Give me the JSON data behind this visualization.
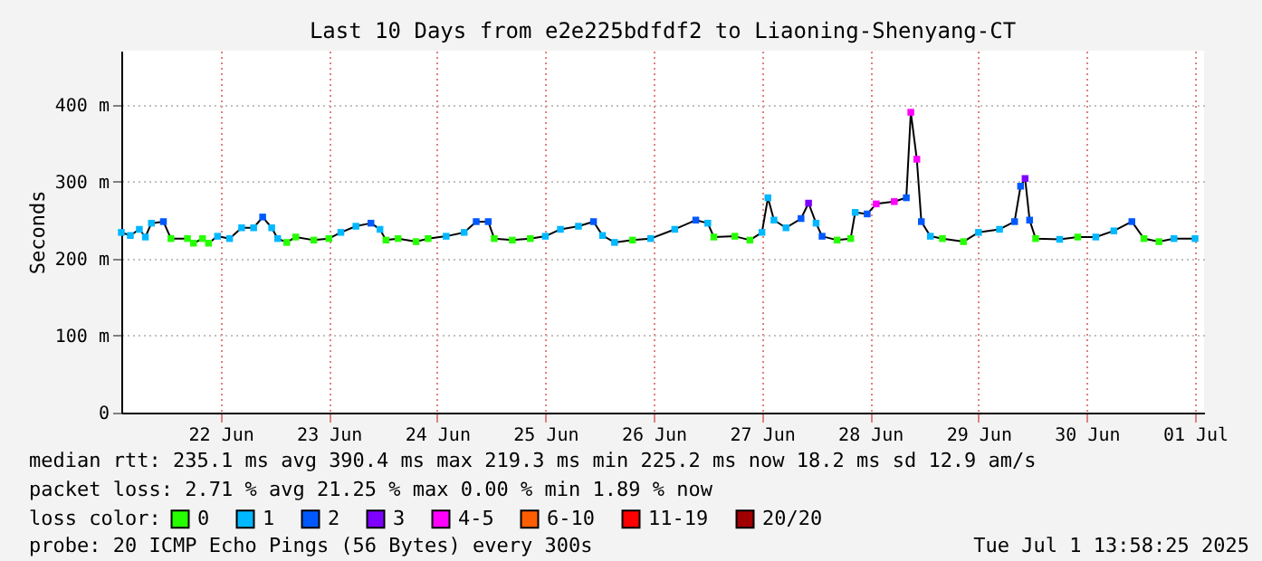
{
  "chart_data": {
    "type": "line",
    "title": "Last 10 Days from e2e225bdfdf2 to Liaoning-Shenyang-CT",
    "ylabel": "Seconds",
    "legend_title": "loss color:",
    "legend": "bottom",
    "grid": true,
    "xlim": [
      "2025-06-21T14:00",
      "2025-07-01T14:00"
    ],
    "xticks": [
      {
        "value": "2025-06-22T12:00",
        "label": "22 Jun"
      },
      {
        "value": "2025-06-23T12:00",
        "label": "23 Jun"
      },
      {
        "value": "2025-06-24T12:00",
        "label": "24 Jun"
      },
      {
        "value": "2025-06-25T12:00",
        "label": "25 Jun"
      },
      {
        "value": "2025-06-26T12:00",
        "label": "26 Jun"
      },
      {
        "value": "2025-06-27T12:00",
        "label": "27 Jun"
      },
      {
        "value": "2025-06-28T12:00",
        "label": "28 Jun"
      },
      {
        "value": "2025-06-29T12:00",
        "label": "29 Jun"
      },
      {
        "value": "2025-06-30T12:00",
        "label": "30 Jun"
      },
      {
        "value": "2025-07-01T12:00",
        "label": "01 Jul"
      }
    ],
    "ylim": [
      0,
      470
    ],
    "yticks": [
      0,
      {
        "value": 100,
        "label": "100 m"
      },
      {
        "value": 200,
        "label": "200 m"
      },
      {
        "value": 300,
        "label": "300 m"
      },
      {
        "value": 400,
        "label": "400 m"
      }
    ],
    "annotations": [
      "median rtt:  235.1 ms avg   390.4 ms max   219.3 ms min   225.2 ms now   18.2 ms sd   12.9    am/s",
      "packet loss: 2.71 % avg   21.25 % max   0.00 % min   1.89 % now",
      "probe:         20 ICMP Echo Pings (56 Bytes) every 300s",
      "Tue Jul  1 13:58:25 2025"
    ],
    "series": [
      {
        "color": "#000000",
        "x": [
          "2025-06-21T14:00",
          "2025-06-21T16:00",
          "2025-06-21T18:00",
          "2025-06-21T19:20",
          "2025-06-21T20:40",
          "2025-06-21T23:20",
          "2025-06-22T01:00",
          "2025-06-22T04:40",
          "2025-06-22T06:00",
          "2025-06-22T08:00",
          "2025-06-22T09:20",
          "2025-06-22T11:20",
          "2025-06-22T14:00",
          "2025-06-22T16:40",
          "2025-06-22T19:20",
          "2025-06-22T21:20",
          "2025-06-22T23:20",
          "2025-06-23T00:40",
          "2025-06-23T02:40",
          "2025-06-23T04:40",
          "2025-06-23T08:40",
          "2025-06-23T12:00",
          "2025-06-23T14:40",
          "2025-06-23T18:00",
          "2025-06-23T21:20",
          "2025-06-23T23:20",
          "2025-06-24T00:40",
          "2025-06-24T03:20",
          "2025-06-24T07:20",
          "2025-06-24T10:00",
          "2025-06-24T14:00",
          "2025-06-24T18:00",
          "2025-06-24T20:40",
          "2025-06-24T23:20",
          "2025-06-25T00:40",
          "2025-06-25T04:40",
          "2025-06-25T08:40",
          "2025-06-25T12:00",
          "2025-06-25T15:20",
          "2025-06-25T19:20",
          "2025-06-25T22:40",
          "2025-06-26T00:40",
          "2025-06-26T03:20",
          "2025-06-26T07:20",
          "2025-06-26T11:20",
          "2025-06-26T16:40",
          "2025-06-26T21:20",
          "2025-06-27T00:00",
          "2025-06-27T01:20",
          "2025-06-27T06:00",
          "2025-06-27T09:20",
          "2025-06-27T12:00",
          "2025-06-27T13:20",
          "2025-06-27T14:40",
          "2025-06-27T17:20",
          "2025-06-27T20:40",
          "2025-06-27T22:20",
          "2025-06-28T00:00",
          "2025-06-28T01:20",
          "2025-06-28T04:40",
          "2025-06-28T07:40",
          "2025-06-28T08:40",
          "2025-06-28T11:20",
          "2025-06-28T13:20",
          "2025-06-28T17:20",
          "2025-06-28T20:00",
          "2025-06-28T21:00",
          "2025-06-28T22:20",
          "2025-06-28T23:20",
          "2025-06-29T01:20",
          "2025-06-29T04:00",
          "2025-06-29T08:40",
          "2025-06-29T12:00",
          "2025-06-29T16:40",
          "2025-06-29T20:00",
          "2025-06-29T21:20",
          "2025-06-29T22:20",
          "2025-06-29T23:20",
          "2025-06-30T00:40",
          "2025-06-30T06:00",
          "2025-06-30T10:00",
          "2025-06-30T14:00",
          "2025-06-30T18:00",
          "2025-06-30T22:00",
          "2025-07-01T00:40",
          "2025-07-01T04:00",
          "2025-07-01T07:20",
          "2025-07-01T12:00"
        ],
        "values": [
          234,
          230,
          238,
          228,
          246,
          248,
          226,
          226,
          220,
          226,
          220,
          229,
          226,
          240,
          240,
          254,
          240,
          226,
          221,
          228,
          224,
          226,
          234,
          242,
          246,
          238,
          224,
          226,
          222,
          226,
          229,
          234,
          248,
          248,
          226,
          224,
          226,
          229,
          238,
          242,
          248,
          230,
          221,
          224,
          226,
          238,
          250,
          246,
          228,
          229,
          224,
          234,
          279,
          250,
          240,
          252,
          272,
          246,
          229,
          224,
          226,
          260,
          258,
          271,
          274,
          279,
          390,
          329,
          248,
          229,
          226,
          222,
          234,
          238,
          248,
          294,
          304,
          250,
          226,
          225,
          228,
          228,
          236,
          248,
          226,
          222,
          226,
          226
        ]
      },
      {
        "type": "scatter",
        "marker": "square",
        "name": "0",
        "color": "#26ff00",
        "x": [
          "2025-06-22T01:00",
          "2025-06-22T04:40",
          "2025-06-22T06:00",
          "2025-06-22T08:00",
          "2025-06-22T09:20",
          "2025-06-23T02:40",
          "2025-06-23T04:40",
          "2025-06-23T08:40",
          "2025-06-23T12:00",
          "2025-06-24T00:40",
          "2025-06-24T03:20",
          "2025-06-24T07:20",
          "2025-06-24T10:00",
          "2025-06-25T00:40",
          "2025-06-25T04:40",
          "2025-06-25T08:40",
          "2025-06-26T07:20",
          "2025-06-27T01:20",
          "2025-06-27T06:00",
          "2025-06-27T09:20",
          "2025-06-28T04:40",
          "2025-06-28T07:40",
          "2025-06-29T04:00",
          "2025-06-29T08:40",
          "2025-06-30T00:40",
          "2025-06-30T10:00",
          "2025-07-01T00:40",
          "2025-07-01T04:00"
        ],
        "values": [
          226,
          226,
          220,
          226,
          220,
          221,
          228,
          224,
          226,
          224,
          226,
          222,
          226,
          226,
          224,
          226,
          224,
          228,
          229,
          224,
          224,
          226,
          226,
          222,
          226,
          228,
          226,
          222
        ]
      },
      {
        "type": "scatter",
        "marker": "square",
        "name": "1",
        "color": "#00b8ff",
        "x": [
          "2025-06-21T14:00",
          "2025-06-21T16:00",
          "2025-06-21T18:00",
          "2025-06-21T19:20",
          "2025-06-21T20:40",
          "2025-06-22T11:20",
          "2025-06-22T14:00",
          "2025-06-22T16:40",
          "2025-06-22T19:20",
          "2025-06-22T23:20",
          "2025-06-23T00:40",
          "2025-06-23T14:40",
          "2025-06-23T18:00",
          "2025-06-23T23:20",
          "2025-06-24T14:00",
          "2025-06-24T18:00",
          "2025-06-25T12:00",
          "2025-06-25T15:20",
          "2025-06-25T19:20",
          "2025-06-26T00:40",
          "2025-06-26T03:20",
          "2025-06-26T11:20",
          "2025-06-26T16:40",
          "2025-06-27T00:00",
          "2025-06-27T12:00",
          "2025-06-27T13:20",
          "2025-06-27T14:40",
          "2025-06-27T17:20",
          "2025-06-28T00:00",
          "2025-06-28T08:40",
          "2025-06-29T01:20",
          "2025-06-29T12:00",
          "2025-06-29T16:40",
          "2025-06-30T06:00",
          "2025-06-30T14:00",
          "2025-06-30T18:00",
          "2025-07-01T07:20",
          "2025-07-01T12:00"
        ],
        "values": [
          234,
          230,
          238,
          228,
          246,
          229,
          226,
          240,
          240,
          240,
          226,
          234,
          242,
          238,
          229,
          234,
          229,
          238,
          242,
          230,
          221,
          226,
          238,
          246,
          234,
          279,
          250,
          240,
          246,
          260,
          229,
          234,
          238,
          225,
          228,
          236,
          226,
          226
        ]
      },
      {
        "type": "scatter",
        "marker": "square",
        "name": "2",
        "color": "#0059ff",
        "x": [
          "2025-06-21T23:20",
          "2025-06-22T21:20",
          "2025-06-23T21:20",
          "2025-06-24T20:40",
          "2025-06-24T23:20",
          "2025-06-25T22:40",
          "2025-06-26T21:20",
          "2025-06-27T20:40",
          "2025-06-28T01:20",
          "2025-06-28T11:20",
          "2025-06-28T20:00",
          "2025-06-28T23:20",
          "2025-06-29T20:00",
          "2025-06-29T21:20",
          "2025-06-29T23:20",
          "2025-06-30T22:00"
        ],
        "values": [
          248,
          254,
          246,
          248,
          248,
          248,
          250,
          252,
          229,
          258,
          279,
          248,
          248,
          294,
          250,
          248
        ]
      },
      {
        "type": "scatter",
        "marker": "square",
        "name": "3",
        "color": "#7e00ff",
        "x": [
          "2025-06-27T22:20",
          "2025-06-29T22:20"
        ],
        "values": [
          272,
          304
        ]
      },
      {
        "type": "scatter",
        "marker": "square",
        "name": "4-5",
        "color": "#ff00ff",
        "x": [
          "2025-06-28T13:20",
          "2025-06-28T17:20",
          "2025-06-28T21:00",
          "2025-06-28T22:20"
        ],
        "values": [
          271,
          274,
          390,
          329
        ]
      },
      {
        "type": "scatter",
        "marker": "square",
        "name": "6-10",
        "color": "#ff5e00"
      },
      {
        "type": "scatter",
        "marker": "square",
        "name": "11-19",
        "color": "#ff0000"
      },
      {
        "type": "scatter",
        "marker": "square",
        "name": "20/20",
        "color": "#a10000"
      }
    ]
  }
}
